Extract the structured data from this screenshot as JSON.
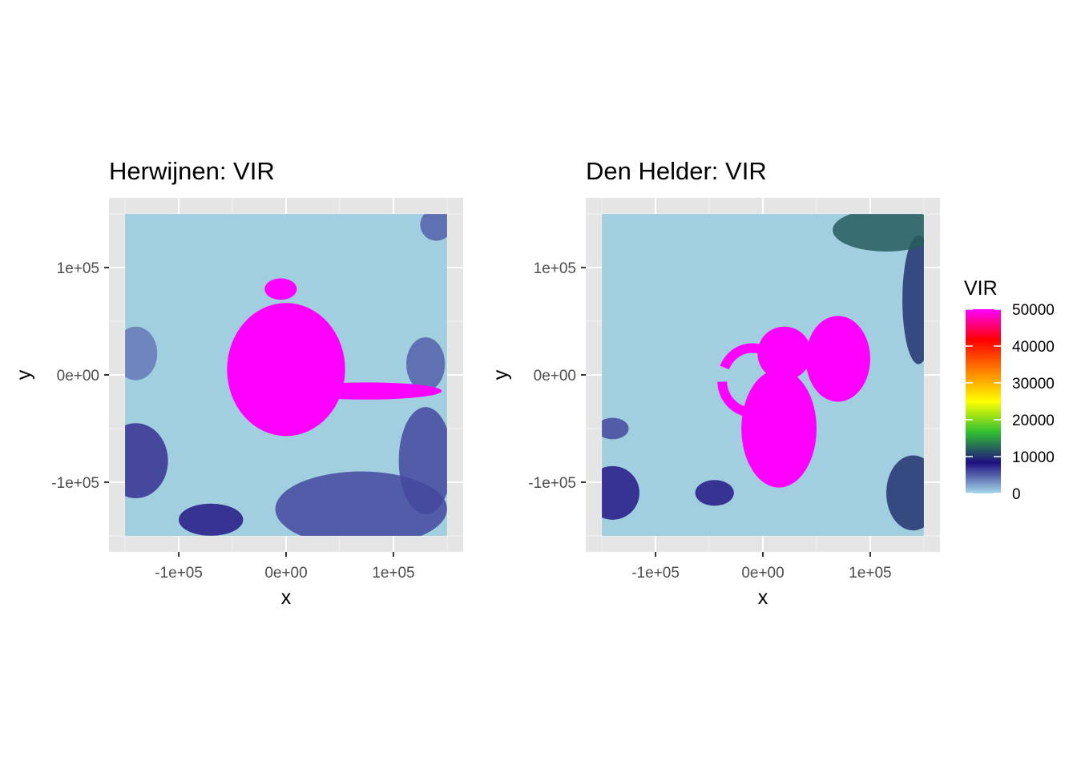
{
  "chart_data": [
    {
      "type": "heatmap",
      "title": "Herwijnen: VIR",
      "xlabel": "x",
      "ylabel": "y",
      "xlim": [
        -200000,
        200000
      ],
      "ylim": [
        -150000,
        150000
      ],
      "x_ticks": [
        {
          "value": -100000,
          "label": "-1e+05"
        },
        {
          "value": 0,
          "label": "0e+00"
        },
        {
          "value": 100000,
          "label": "1e+05"
        }
      ],
      "y_ticks": [
        {
          "value": 100000,
          "label": "1e+05"
        },
        {
          "value": 0,
          "label": "0e+00"
        },
        {
          "value": -100000,
          "label": "-1e+05"
        }
      ],
      "grid": true,
      "fill_variable": "VIR",
      "blobs": [
        {
          "cx": 0,
          "cy": 5000,
          "rx": 55000,
          "ry": 62000,
          "value": 50000
        },
        {
          "cx": 75000,
          "cy": -15000,
          "rx": 70000,
          "ry": 8000,
          "value": 50000
        },
        {
          "cx": -5000,
          "cy": 80000,
          "rx": 15000,
          "ry": 10000,
          "value": 50000
        },
        {
          "cx": 70000,
          "cy": -125000,
          "rx": 80000,
          "ry": 35000,
          "value": 6000
        },
        {
          "cx": 130000,
          "cy": -80000,
          "rx": 25000,
          "ry": 50000,
          "value": 6000
        },
        {
          "cx": 130000,
          "cy": 10000,
          "rx": 18000,
          "ry": 25000,
          "value": 5000
        },
        {
          "cx": -140000,
          "cy": -80000,
          "rx": 30000,
          "ry": 35000,
          "value": 7000
        },
        {
          "cx": -140000,
          "cy": 20000,
          "rx": 20000,
          "ry": 25000,
          "value": 4000
        },
        {
          "cx": -70000,
          "cy": -135000,
          "rx": 30000,
          "ry": 15000,
          "value": 8000
        },
        {
          "cx": 140000,
          "cy": 140000,
          "rx": 15000,
          "ry": 15000,
          "value": 5000
        }
      ]
    },
    {
      "type": "heatmap",
      "title": "Den Helder: VIR",
      "xlabel": "x",
      "ylabel": "y",
      "xlim": [
        -200000,
        200000
      ],
      "ylim": [
        -150000,
        150000
      ],
      "x_ticks": [
        {
          "value": -100000,
          "label": "-1e+05"
        },
        {
          "value": 0,
          "label": "0e+00"
        },
        {
          "value": 100000,
          "label": "1e+05"
        }
      ],
      "y_ticks": [
        {
          "value": 100000,
          "label": "1e+05"
        },
        {
          "value": 0,
          "label": "0e+00"
        },
        {
          "value": -100000,
          "label": "-1e+05"
        }
      ],
      "grid": true,
      "fill_variable": "VIR",
      "blobs": [
        {
          "cx": 70000,
          "cy": 15000,
          "rx": 30000,
          "ry": 40000,
          "value": 50000
        },
        {
          "cx": 15000,
          "cy": -50000,
          "rx": 35000,
          "ry": 55000,
          "value": 50000
        },
        {
          "cx": 20000,
          "cy": 20000,
          "rx": 25000,
          "ry": 25000,
          "value": 50000
        },
        {
          "cx": 115000,
          "cy": 135000,
          "rx": 50000,
          "ry": 20000,
          "value": 12000
        },
        {
          "cx": 145000,
          "cy": 70000,
          "rx": 15000,
          "ry": 60000,
          "value": 10000
        },
        {
          "cx": 140000,
          "cy": -110000,
          "rx": 25000,
          "ry": 35000,
          "value": 10000
        },
        {
          "cx": -45000,
          "cy": -110000,
          "rx": 18000,
          "ry": 12000,
          "value": 8000
        },
        {
          "cx": -140000,
          "cy": -110000,
          "rx": 25000,
          "ry": 25000,
          "value": 8000
        },
        {
          "cx": -140000,
          "cy": -50000,
          "rx": 15000,
          "ry": 10000,
          "value": 6000
        }
      ],
      "rings": [
        {
          "cx": -10000,
          "cy": -5000,
          "rx": 28000,
          "ry": 30000,
          "value": 50000
        }
      ]
    }
  ],
  "legend": {
    "title": "VIR",
    "placement": "right",
    "limits": [
      0,
      50000
    ],
    "breaks": [
      {
        "value": 50000,
        "label": "50000"
      },
      {
        "value": 40000,
        "label": "40000"
      },
      {
        "value": 30000,
        "label": "30000"
      },
      {
        "value": 20000,
        "label": "20000"
      },
      {
        "value": 10000,
        "label": "10000"
      },
      {
        "value": 0,
        "label": "0"
      }
    ],
    "colors": [
      "#a6d8ea",
      "#1f1080",
      "#30c030",
      "#ffff00",
      "#ff8000",
      "#ff0000",
      "#ff00ff"
    ]
  },
  "colors": {
    "panel_background": "#e5e5e5",
    "grid": "#ffffff",
    "nodata_fill": "#a1cfe0"
  }
}
